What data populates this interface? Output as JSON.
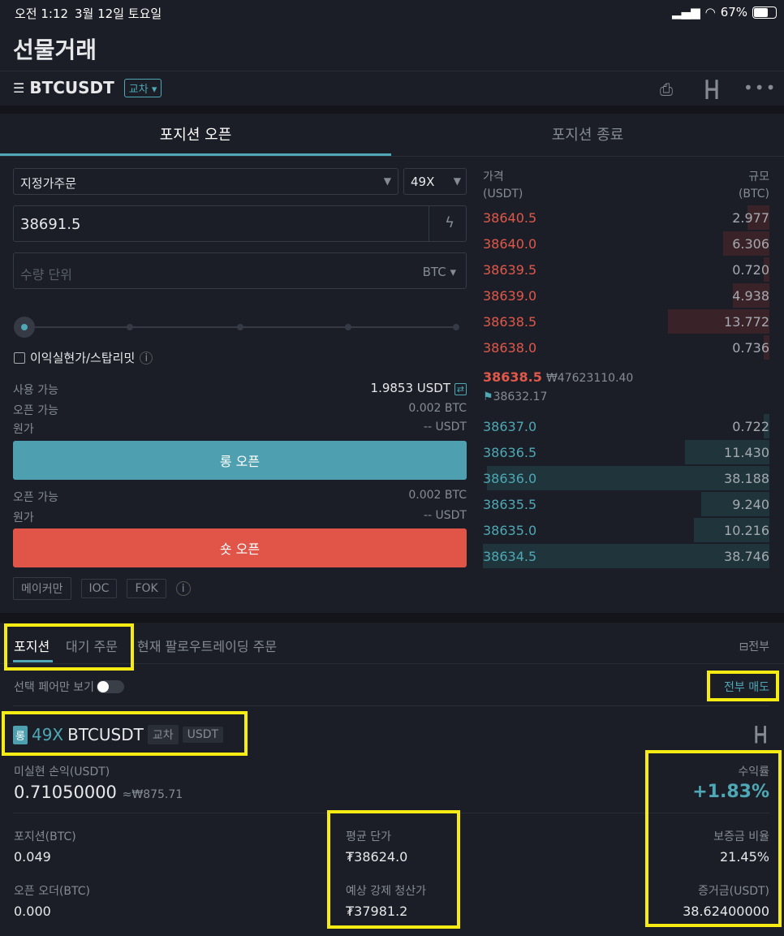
{
  "status_bar": {
    "time": "오전 1:12",
    "date": "3월 12일 토요일",
    "battery": "67%"
  },
  "header": {
    "title": "선물거래"
  },
  "symbol_bar": {
    "symbol": "BTCUSDT",
    "margin_mode": "교차"
  },
  "order_tabs": [
    {
      "label": "포지션 오픈",
      "active": true
    },
    {
      "label": "포지션 종료",
      "active": false
    }
  ],
  "order_form": {
    "order_type": "지정가주문",
    "leverage": "49X",
    "price": "38691.5",
    "quantity_placeholder": "수량 단위",
    "quantity_unit": "BTC",
    "slider_value_percent": 0,
    "tpsl_label": "이익실현가/스탑리밋",
    "available_label": "사용 가능",
    "available_value": "1.9853 USDT",
    "long": {
      "open_label": "오픈 가능",
      "open_value": "0.002 BTC",
      "cost_label": "원가",
      "cost_value": "-- USDT",
      "button": "롱 오픈"
    },
    "short": {
      "open_label": "오픈 가능",
      "open_value": "0.002 BTC",
      "cost_label": "원가",
      "cost_value": "-- USDT",
      "button": "숏 오픈"
    },
    "options": [
      "메이커만",
      "IOC",
      "FOK"
    ]
  },
  "orderbook": {
    "price_header": "가격",
    "price_unit": "(USDT)",
    "size_header": "규모",
    "size_unit": "(BTC)",
    "asks": [
      {
        "price": "38640.5",
        "size": "2.977"
      },
      {
        "price": "38640.0",
        "size": "6.306"
      },
      {
        "price": "38639.5",
        "size": "0.720"
      },
      {
        "price": "38639.0",
        "size": "4.938"
      },
      {
        "price": "38638.5",
        "size": "13.772"
      },
      {
        "price": "38638.0",
        "size": "0.736"
      }
    ],
    "last_price": "38638.5",
    "last_price_krw": "₩47623110.40",
    "mark_price": "38632.17",
    "bids": [
      {
        "price": "38637.0",
        "size": "0.722"
      },
      {
        "price": "38636.5",
        "size": "11.430"
      },
      {
        "price": "38636.0",
        "size": "38.188"
      },
      {
        "price": "38635.5",
        "size": "9.240"
      },
      {
        "price": "38635.0",
        "size": "10.216"
      },
      {
        "price": "38634.5",
        "size": "38.746"
      }
    ],
    "colors": {
      "ask": "#e0584a",
      "bid": "#4ea8b6"
    }
  },
  "positions": {
    "tabs": [
      {
        "label": "포지션",
        "active": true
      },
      {
        "label": "대기 주문",
        "active": false
      },
      {
        "label": "현재 팔로우트레이딩 주문",
        "active": false
      }
    ],
    "all_label": "전부",
    "filter_label": "선택 페어만 보기",
    "filter_on": false,
    "close_all": "전부 매도",
    "item": {
      "side": "롱",
      "leverage": "49X",
      "symbol": "BTCUSDT",
      "mode": "교차",
      "margin_coin": "USDT",
      "pnl_label": "미실현 손익(USDT)",
      "pnl": "0.71050000",
      "pnl_krw": "≈₩875.71",
      "roe_label": "수익률",
      "roe": "+1.83%",
      "size_label": "포지션(BTC)",
      "size": "0.049",
      "avg_label": "평균 단가",
      "avg": "₮38624.0",
      "margin_ratio_label": "보증금 비율",
      "margin_ratio": "21.45%",
      "open_orders_label": "오픈 오더(BTC)",
      "open_orders": "0.000",
      "liq_label": "예상 강제 청산가",
      "liq": "₮37981.2",
      "margin_label": "증거금(USDT)",
      "margin": "38.62400000"
    }
  }
}
